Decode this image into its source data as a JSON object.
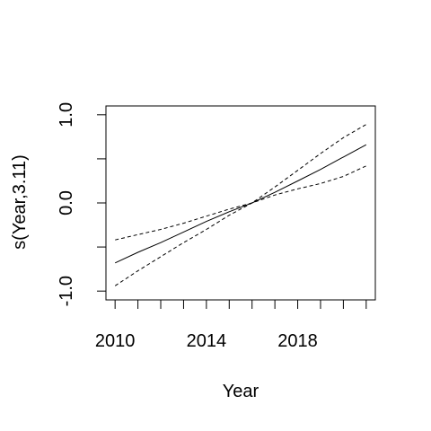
{
  "chart_data": {
    "type": "line",
    "title": "",
    "xlabel": "Year",
    "ylabel": "s(Year,3.11)",
    "xlim": [
      2009.6,
      2021.4
    ],
    "ylim": [
      -1.1,
      1.1
    ],
    "x_ticks": [
      2010,
      2011,
      2012,
      2013,
      2014,
      2015,
      2016,
      2017,
      2018,
      2019,
      2020,
      2021
    ],
    "x_tick_labels": [
      {
        "value": 2010,
        "label": "2010"
      },
      {
        "value": 2014,
        "label": "2014"
      },
      {
        "value": 2018,
        "label": "2018"
      }
    ],
    "y_ticks": [
      -1.0,
      -0.5,
      0.0,
      0.5,
      1.0
    ],
    "y_tick_labels": [
      {
        "value": -1.0,
        "label": "-1.0"
      },
      {
        "value": 0.0,
        "label": "0.0"
      },
      {
        "value": 1.0,
        "label": "1.0"
      }
    ],
    "grid": false,
    "series": [
      {
        "role": "fit",
        "line_style": "solid",
        "x": [
          2010,
          2011,
          2012,
          2013,
          2014,
          2015,
          2016,
          2017,
          2018,
          2019,
          2020,
          2021
        ],
        "y": [
          -0.68,
          -0.56,
          -0.45,
          -0.33,
          -0.21,
          -0.1,
          0.0,
          0.12,
          0.25,
          0.38,
          0.52,
          0.66
        ]
      },
      {
        "role": "upper-band",
        "line_style": "dashed",
        "x": [
          2010,
          2011,
          2012,
          2013,
          2014,
          2015,
          2016,
          2017,
          2018,
          2019,
          2020,
          2021
        ],
        "y": [
          -0.42,
          -0.36,
          -0.3,
          -0.23,
          -0.15,
          -0.07,
          0.0,
          0.18,
          0.37,
          0.56,
          0.74,
          0.89
        ]
      },
      {
        "role": "lower-band",
        "line_style": "dashed",
        "x": [
          2010,
          2011,
          2012,
          2013,
          2014,
          2015,
          2016,
          2017,
          2018,
          2019,
          2020,
          2021
        ],
        "y": [
          -0.94,
          -0.77,
          -0.61,
          -0.45,
          -0.3,
          -0.14,
          0.0,
          0.09,
          0.16,
          0.22,
          0.3,
          0.42
        ]
      }
    ]
  }
}
